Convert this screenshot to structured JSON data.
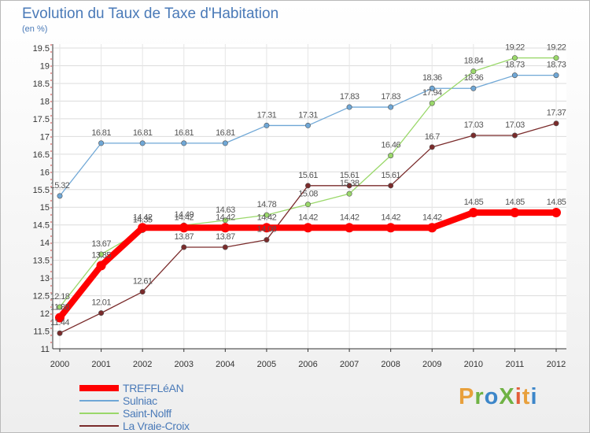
{
  "header": {
    "title": "Evolution du Taux de Taxe d'Habitation",
    "unit": "(en %)"
  },
  "logo": {
    "text": "ProXiti",
    "letters": [
      "P",
      "r",
      "o",
      "X",
      "i",
      "t",
      "i"
    ],
    "colors": [
      "#e8a03c",
      "#6fb244",
      "#3c86c9",
      "#6fb244",
      "#e35d3a",
      "#e8a03c",
      "#3c86c9"
    ]
  },
  "chart_data": {
    "type": "line",
    "title": "Evolution du Taux de Taxe d'Habitation",
    "ylabel": "(en %)",
    "xlabel": "",
    "x": [
      "2000",
      "2001",
      "2002",
      "2003",
      "2004",
      "2005",
      "2006",
      "2007",
      "2008",
      "2009",
      "2010",
      "2011",
      "2012"
    ],
    "ylim": [
      11,
      19.5
    ],
    "yticks": [
      "11",
      "11.5",
      "12",
      "12.5",
      "13",
      "13.5",
      "14",
      "14.5",
      "15",
      "15.5",
      "16",
      "16.5",
      "17",
      "17.5",
      "18",
      "18.5",
      "19",
      "19.5"
    ],
    "grid": true,
    "legend": "bottom-left",
    "series": [
      {
        "name": "TREFFLéAN",
        "color": "#ff0000",
        "values": [
          11.88,
          13.35,
          14.42,
          14.42,
          14.42,
          14.42,
          14.42,
          14.42,
          14.42,
          14.42,
          14.85,
          14.85,
          14.85
        ],
        "labels": [
          "11.88",
          "13.35",
          "14.42",
          "14.42",
          "14.42",
          "14.42",
          "14.42",
          "14.42",
          "14.42",
          "14.42",
          "14.85",
          "14.85",
          "14.85"
        ]
      },
      {
        "name": "Sulniac",
        "color": "#6fa7d6",
        "values": [
          15.32,
          16.81,
          16.81,
          16.81,
          16.81,
          17.31,
          17.31,
          17.83,
          17.83,
          18.36,
          18.36,
          18.73,
          18.73
        ],
        "labels": [
          "15.32",
          "16.81",
          "16.81",
          "16.81",
          "16.81",
          "17.31",
          "17.31",
          "17.83",
          "17.83",
          "18.36",
          "18.36",
          "18.73",
          "18.73"
        ]
      },
      {
        "name": "Saint-Nolff",
        "color": "#9ad86a",
        "values": [
          12.18,
          13.67,
          14.35,
          14.49,
          14.63,
          14.78,
          15.08,
          15.38,
          16.46,
          17.94,
          18.84,
          19.22,
          19.22
        ],
        "labels": [
          "12.18",
          "13.67",
          "14.35",
          "14.49",
          "14.63",
          "14.78",
          "15.08",
          "15.38",
          "16.46",
          "17.94",
          "18.84",
          "19.22",
          "19.22"
        ]
      },
      {
        "name": "La Vraie-Croix",
        "color": "#7a2b2b",
        "values": [
          11.44,
          12.01,
          12.61,
          13.87,
          13.87,
          14.08,
          15.61,
          15.61,
          15.61,
          16.7,
          17.03,
          17.03,
          17.37
        ],
        "labels": [
          "11.44",
          "12.01",
          "12.61",
          "13.87",
          "13.87",
          "14.08",
          "15.61",
          "15.61",
          "15.61",
          "16.7",
          "17.03",
          "17.03",
          "17.37"
        ]
      }
    ]
  }
}
